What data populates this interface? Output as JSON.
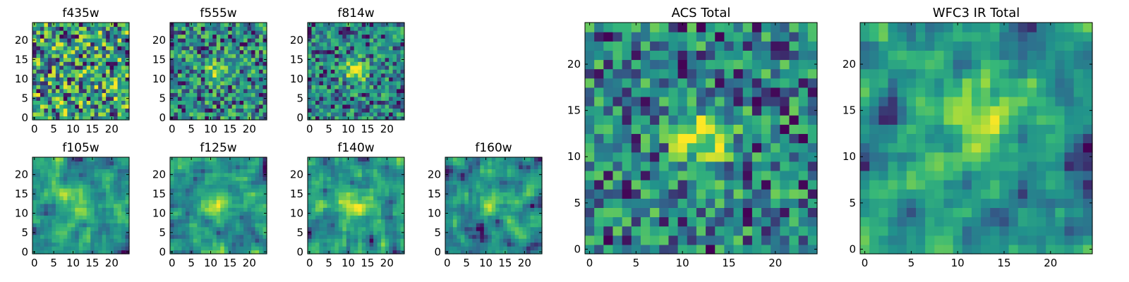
{
  "figure": {
    "colormap": "viridis",
    "colors": [
      "#440154",
      "#31688e",
      "#21918c",
      "#35b779",
      "#90d743",
      "#fde725"
    ]
  },
  "chart_data": [
    {
      "id": "f435w",
      "type": "heatmap",
      "title": "f435w",
      "size": 25,
      "xticks": [
        0,
        5,
        10,
        15,
        20
      ],
      "yticks": [
        0,
        5,
        10,
        15,
        20
      ],
      "texture": "noise",
      "source_radius": 0,
      "source_amp": 0.0,
      "blur": 0,
      "seed": 11
    },
    {
      "id": "f555w",
      "type": "heatmap",
      "title": "f555w",
      "size": 25,
      "xticks": [
        0,
        5,
        10,
        15,
        20
      ],
      "yticks": [
        0,
        5,
        10,
        15,
        20
      ],
      "texture": "noise",
      "source_center": [
        12,
        12
      ],
      "source_radius": 1.8,
      "source_amp": 0.45,
      "blur": 0,
      "seed": 23
    },
    {
      "id": "f814w",
      "type": "heatmap",
      "title": "f814w",
      "size": 25,
      "xticks": [
        0,
        5,
        10,
        15,
        20
      ],
      "yticks": [
        0,
        5,
        10,
        15,
        20
      ],
      "texture": "noise",
      "source_center": [
        12,
        12
      ],
      "source_radius": 2.0,
      "source_amp": 0.6,
      "blur": 0,
      "seed": 37
    },
    {
      "id": "f105w",
      "type": "heatmap",
      "title": "f105w",
      "size": 25,
      "xticks": [
        0,
        5,
        10,
        15,
        20
      ],
      "yticks": [
        0,
        5,
        10,
        15,
        20
      ],
      "texture": "smooth",
      "source_center": [
        12,
        12
      ],
      "source_radius": 3.0,
      "source_amp": 0.35,
      "blur": 1,
      "seed": 41
    },
    {
      "id": "f125w",
      "type": "heatmap",
      "title": "f125w",
      "size": 25,
      "xticks": [
        0,
        5,
        10,
        15,
        20
      ],
      "yticks": [
        0,
        5,
        10,
        15,
        20
      ],
      "texture": "smooth",
      "source_center": [
        12,
        12
      ],
      "source_radius": 2.5,
      "source_amp": 0.35,
      "blur": 1,
      "seed": 53
    },
    {
      "id": "f140w",
      "type": "heatmap",
      "title": "f140w",
      "size": 25,
      "xticks": [
        0,
        5,
        10,
        15,
        20
      ],
      "yticks": [
        0,
        5,
        10,
        15,
        20
      ],
      "texture": "smooth",
      "source_center": [
        12,
        13
      ],
      "source_radius": 2.5,
      "source_amp": 0.4,
      "blur": 1,
      "seed": 67
    },
    {
      "id": "f160w",
      "type": "heatmap",
      "title": "f160w",
      "size": 25,
      "xticks": [
        0,
        5,
        10,
        15,
        20
      ],
      "yticks": [
        0,
        5,
        10,
        15,
        20
      ],
      "texture": "smooth",
      "source_center": [
        12,
        13
      ],
      "source_radius": 2.2,
      "source_amp": 0.5,
      "blur": 1,
      "seed": 79
    },
    {
      "id": "acs_total",
      "type": "heatmap",
      "title": "ACS Total",
      "size": 25,
      "xticks": [
        0,
        5,
        10,
        15,
        20
      ],
      "yticks": [
        0,
        5,
        10,
        15,
        20
      ],
      "texture": "noise",
      "source_center": [
        12,
        12
      ],
      "source_radius": 2.2,
      "source_amp": 0.55,
      "blur": 0,
      "seed": 97
    },
    {
      "id": "wfc3_total",
      "type": "heatmap",
      "title": "WFC3 IR Total",
      "size": 25,
      "xticks": [
        0,
        5,
        10,
        15,
        20
      ],
      "yticks": [
        0,
        5,
        10,
        15,
        20
      ],
      "texture": "smooth",
      "source_center": [
        12,
        13
      ],
      "source_radius": 2.6,
      "source_amp": 0.5,
      "blur": 1,
      "seed": 113
    }
  ]
}
